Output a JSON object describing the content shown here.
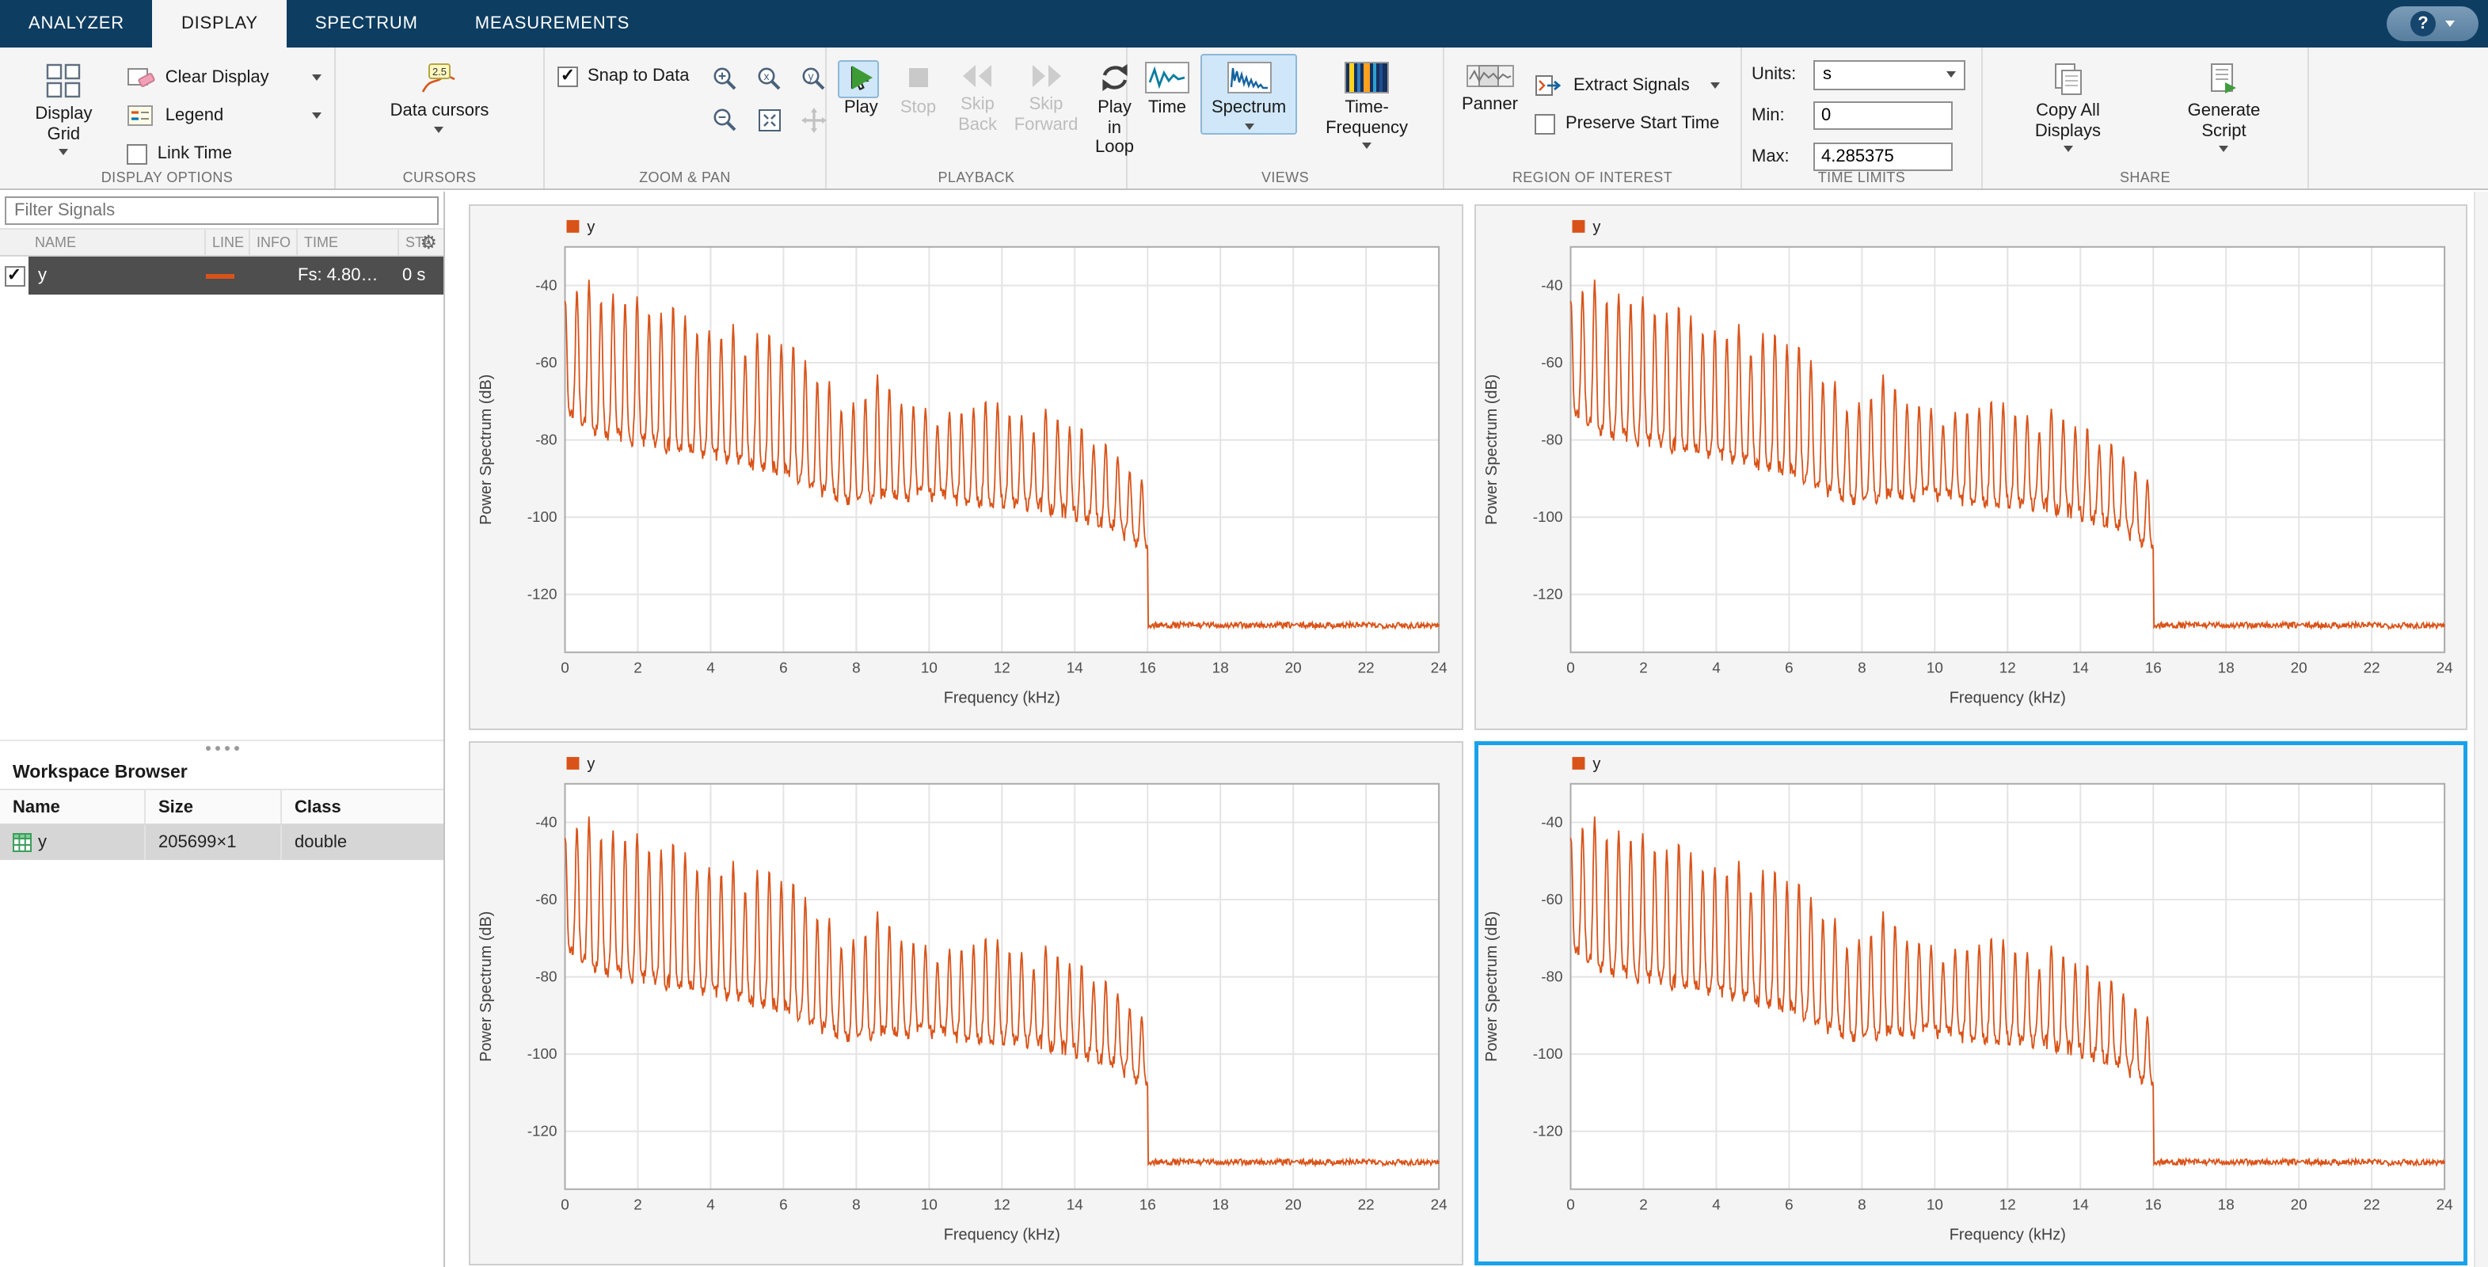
{
  "app": {
    "help_label": "?"
  },
  "tabs": {
    "items": [
      {
        "label": "ANALYZER"
      },
      {
        "label": "DISPLAY",
        "active": true
      },
      {
        "label": "SPECTRUM"
      },
      {
        "label": "MEASUREMENTS"
      }
    ]
  },
  "ribbon": {
    "section_labels": [
      "DISPLAY OPTIONS",
      "CURSORS",
      "ZOOM & PAN",
      "PLAYBACK",
      "VIEWS",
      "REGION OF INTEREST",
      "TIME LIMITS",
      "SHARE"
    ],
    "display_options": {
      "display_grid": "Display Grid",
      "clear_display": "Clear Display",
      "legend": "Legend",
      "link_time": "Link Time",
      "link_time_checked": false
    },
    "cursors": {
      "data_cursors": "Data cursors",
      "cursor_badge": "2.5"
    },
    "zoom_pan": {
      "snap_to_data": "Snap to Data",
      "snap_checked": true
    },
    "playback": {
      "play": "Play",
      "stop": "Stop",
      "skip_back": "Skip Back",
      "skip_forward": "Skip Forward",
      "play_in_loop": "Play in Loop"
    },
    "views": {
      "time": "Time",
      "spectrum": "Spectrum",
      "time_frequency": "Time-Frequency",
      "selected": "Spectrum"
    },
    "region_of_interest": {
      "panner": "Panner",
      "extract_signals": "Extract Signals",
      "preserve_start_time": "Preserve Start Time",
      "preserve_checked": false
    },
    "time_limits": {
      "units_label": "Units:",
      "units_value": "s",
      "min_label": "Min:",
      "min_value": "0",
      "max_label": "Max:",
      "max_value": "4.285375"
    },
    "share": {
      "copy_all_displays": "Copy All Displays",
      "generate_script": "Generate Script"
    }
  },
  "sidebar": {
    "filter_placeholder": "Filter Signals",
    "signal_table": {
      "headers": {
        "name": "NAME",
        "line": "LINE",
        "info": "INFO",
        "time": "TIME",
        "start": "STA"
      },
      "rows": [
        {
          "checked": true,
          "name": "y",
          "time": "Fs: 4.80…",
          "start": "0 s",
          "line_color": "#d95319"
        }
      ]
    },
    "workspace": {
      "title": "Workspace Browser",
      "headers": {
        "name": "Name",
        "size": "Size",
        "class": "Class"
      },
      "rows": [
        {
          "name": "y",
          "size": "205699×1",
          "class": "double"
        }
      ]
    }
  },
  "chart_data": {
    "type": "line",
    "displays": {
      "rows": 2,
      "cols": 2,
      "count": 4,
      "selected_index": 3
    },
    "title": "",
    "xlabel": "Frequency (kHz)",
    "ylabel": "Power Spectrum (dB)",
    "xlim": [
      0,
      24
    ],
    "ylim": [
      -135,
      -30
    ],
    "x_ticks": [
      0,
      2,
      4,
      6,
      8,
      10,
      12,
      14,
      16,
      18,
      20,
      22,
      24
    ],
    "y_ticks": [
      -40,
      -60,
      -80,
      -100,
      -120
    ],
    "grid": true,
    "legend": {
      "label": "y",
      "color": "#d95319",
      "position": "top-left"
    },
    "series": [
      {
        "name": "y",
        "color": "#d95319",
        "description": "Harmonic comb power spectrum declining from about -35 dB near 0 kHz to about -90 dB at 16 kHz, with sharp lowpass cutoff at 16 kHz and flat noise floor of -128 dB from 16 to 24 kHz",
        "peak_spacing_khz": 0.33,
        "cutoff_khz": 16,
        "noise_floor_db": -128,
        "seed": 7,
        "envelope_top_db": [
          [
            0,
            -46
          ],
          [
            0.1,
            -35
          ],
          [
            0.35,
            -44
          ],
          [
            0.6,
            -40
          ],
          [
            0.9,
            -46
          ],
          [
            1.2,
            -42
          ],
          [
            1.6,
            -45
          ],
          [
            2,
            -44
          ],
          [
            2.4,
            -48
          ],
          [
            2.8,
            -47
          ],
          [
            3.2,
            -50
          ],
          [
            3.6,
            -49
          ],
          [
            4,
            -53
          ],
          [
            4.4,
            -51
          ],
          [
            4.8,
            -54
          ],
          [
            5.2,
            -56
          ],
          [
            5.6,
            -54
          ],
          [
            6,
            -56
          ],
          [
            6.4,
            -57
          ],
          [
            6.8,
            -60
          ],
          [
            7.2,
            -65
          ],
          [
            7.6,
            -70
          ],
          [
            8,
            -71
          ],
          [
            8.4,
            -67
          ],
          [
            8.8,
            -66
          ],
          [
            9.2,
            -68
          ],
          [
            9.6,
            -70
          ],
          [
            10,
            -72
          ],
          [
            10.4,
            -74
          ],
          [
            10.8,
            -75
          ],
          [
            11.2,
            -74
          ],
          [
            11.6,
            -72
          ],
          [
            12,
            -73
          ],
          [
            12.4,
            -76
          ],
          [
            12.8,
            -77
          ],
          [
            13.2,
            -74
          ],
          [
            13.6,
            -73
          ],
          [
            14,
            -75
          ],
          [
            14.4,
            -78
          ],
          [
            14.8,
            -80
          ],
          [
            15.2,
            -83
          ],
          [
            15.6,
            -86
          ],
          [
            15.9,
            -90
          ],
          [
            16,
            -97
          ]
        ],
        "envelope_bottom_db": [
          [
            0,
            -72
          ],
          [
            1,
            -78
          ],
          [
            2,
            -80
          ],
          [
            3,
            -82
          ],
          [
            4,
            -84
          ],
          [
            5,
            -86
          ],
          [
            6,
            -88
          ],
          [
            7,
            -93
          ],
          [
            8,
            -96
          ],
          [
            9,
            -94
          ],
          [
            10,
            -94
          ],
          [
            11,
            -96
          ],
          [
            12,
            -96
          ],
          [
            13,
            -97
          ],
          [
            14,
            -99
          ],
          [
            15,
            -102
          ],
          [
            16,
            -108
          ]
        ]
      }
    ]
  }
}
